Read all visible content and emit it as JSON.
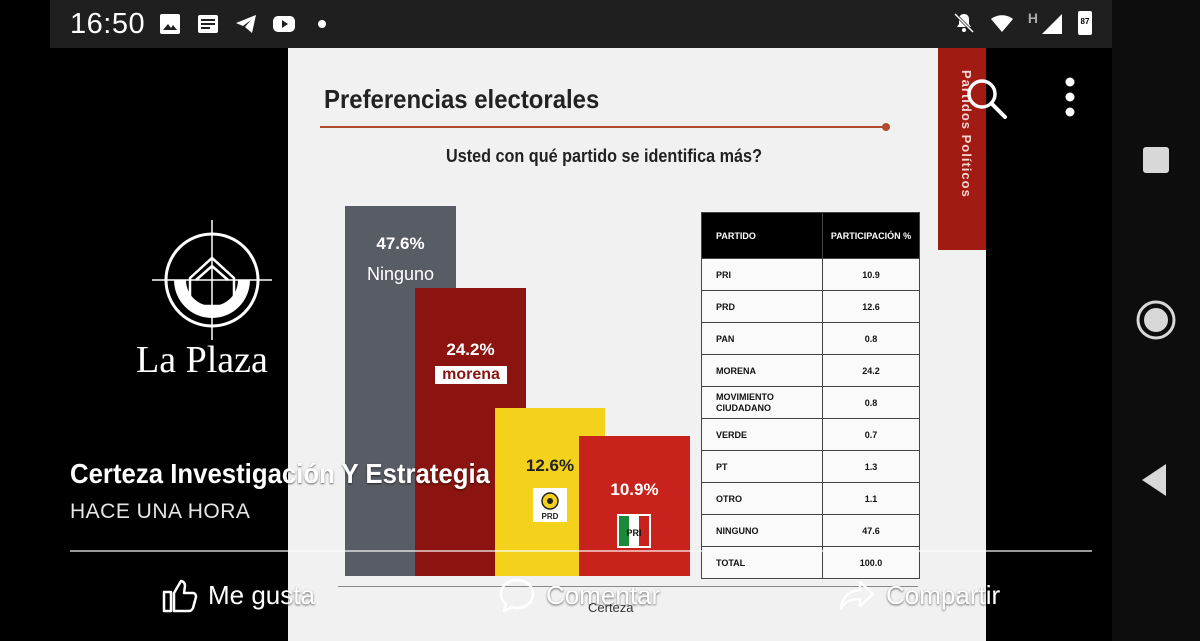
{
  "status_bar": {
    "time": "16:50",
    "left_icons": [
      "image-icon",
      "news-icon",
      "telegram-icon",
      "youtube-icon",
      "dot-icon"
    ],
    "right_icons": [
      "muted-bell-icon",
      "wifi-icon",
      "signal-icon",
      "battery-icon"
    ],
    "network_label": "H",
    "battery_level": "87"
  },
  "slide": {
    "title": "Preferencias electorales",
    "question": "Usted con qué partido se identifica más?",
    "side_banner": "Partidos Políticos",
    "footer_logo": "Certeza",
    "accent_color": "#a11b12",
    "chart_data": {
      "type": "bar",
      "categories": [
        "Ninguno",
        "morena",
        "PRD",
        "PRI"
      ],
      "values": [
        47.6,
        24.2,
        12.6,
        10.9
      ],
      "labels": [
        "47.6%",
        "24.2%",
        "12.6%",
        "10.9%"
      ],
      "colors": [
        "#585c64",
        "#8b1410",
        "#f4d21c",
        "#c8221c"
      ],
      "title": "",
      "xlabel": "",
      "ylabel": ""
    },
    "table": {
      "headers": [
        "PARTIDO",
        "PARTICIPACIÓN %"
      ],
      "rows": [
        [
          "PRI",
          "10.9"
        ],
        [
          "PRD",
          "12.6"
        ],
        [
          "PAN",
          "0.8"
        ],
        [
          "MORENA",
          "24.2"
        ],
        [
          "MOVIMIENTO CIUDADANO",
          "0.8"
        ],
        [
          "VERDE",
          "0.7"
        ],
        [
          "PT",
          "1.3"
        ],
        [
          "OTRO",
          "1.1"
        ],
        [
          "NINGUNO",
          "47.6"
        ],
        [
          "TOTAL",
          "100.0"
        ]
      ]
    }
  },
  "overlay": {
    "watermark": "La Plaza",
    "post_title": "Certeza Investigación Y Estrategia",
    "post_time": "HACE UNA HORA",
    "actions": {
      "like": "Me gusta",
      "comment": "Comentar",
      "share": "Compartir"
    }
  }
}
